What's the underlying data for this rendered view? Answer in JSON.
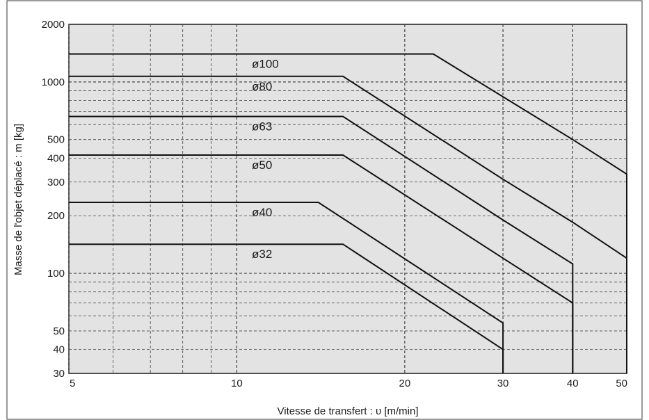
{
  "chart_data": {
    "type": "line",
    "title": "",
    "xlabel": "Vitesse de transfert : υ [m/min]",
    "ylabel": "Masse de l'objet déplacé : m [kg]",
    "x_scale": "log",
    "y_scale": "log",
    "xlim": [
      5,
      50
    ],
    "ylim": [
      30,
      2000
    ],
    "x_ticks": [
      "5",
      "10",
      "20",
      "30",
      "40",
      "50"
    ],
    "y_ticks": [
      "2000",
      "1000",
      "500",
      "400",
      "300",
      "200",
      "100",
      "50",
      "40",
      "30"
    ],
    "grid": true,
    "series": [
      {
        "name": "ø100",
        "points": [
          [
            5,
            1400
          ],
          [
            22.5,
            1400
          ],
          [
            40,
            500
          ],
          [
            50,
            330
          ],
          [
            50,
            30
          ]
        ]
      },
      {
        "name": "ø80",
        "points": [
          [
            5,
            1070
          ],
          [
            15.5,
            1070
          ],
          [
            30,
            310
          ],
          [
            40,
            185
          ],
          [
            50,
            120
          ],
          [
            50,
            30
          ]
        ]
      },
      {
        "name": "ø63",
        "points": [
          [
            5,
            660
          ],
          [
            15.5,
            660
          ],
          [
            30,
            190
          ],
          [
            40,
            112
          ],
          [
            40,
            30
          ]
        ]
      },
      {
        "name": "ø50",
        "points": [
          [
            5,
            415
          ],
          [
            15.5,
            415
          ],
          [
            30,
            120
          ],
          [
            40,
            70
          ],
          [
            40,
            30
          ]
        ]
      },
      {
        "name": "ø40",
        "points": [
          [
            5,
            235
          ],
          [
            14,
            235
          ],
          [
            30,
            55
          ],
          [
            30,
            30
          ]
        ]
      },
      {
        "name": "ø32",
        "points": [
          [
            5,
            142
          ],
          [
            15.5,
            142
          ],
          [
            30,
            40
          ],
          [
            30,
            30
          ]
        ]
      }
    ]
  }
}
